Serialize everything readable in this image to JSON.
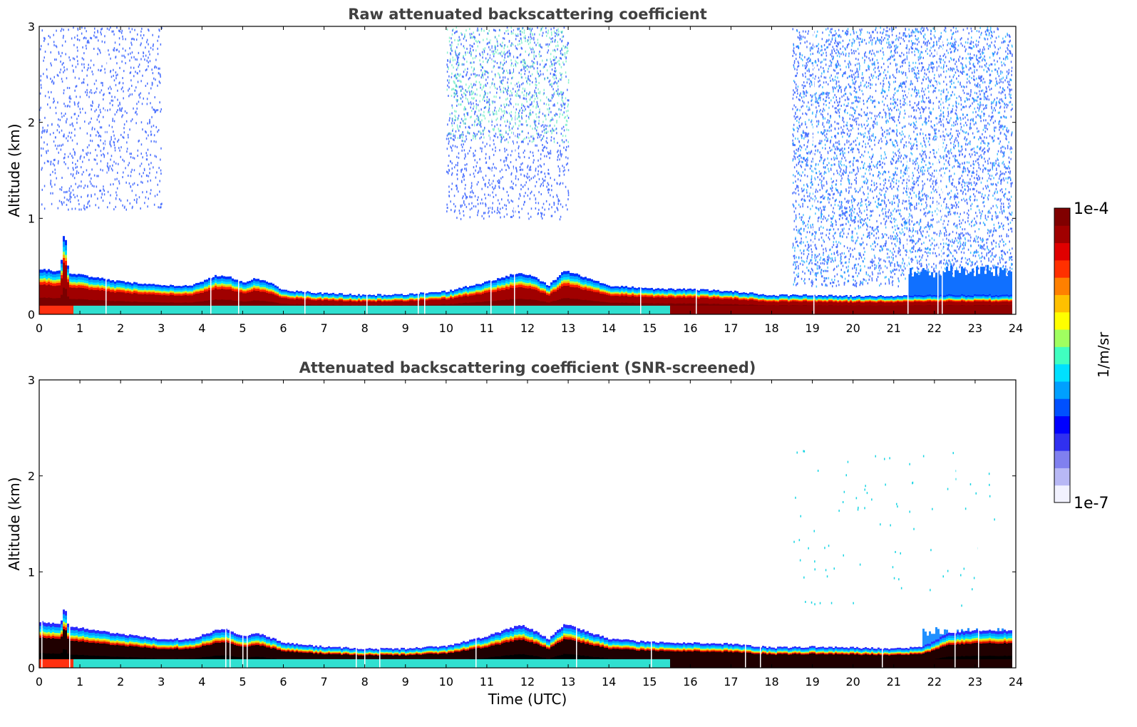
{
  "chart_data": [
    {
      "type": "heatmap",
      "title": "Raw attenuated backscattering coefficient",
      "xlabel": "",
      "ylabel": "Altitude (km)",
      "xlim": [
        0,
        24
      ],
      "ylim": [
        0,
        3
      ],
      "xticks": [
        "0",
        "1",
        "2",
        "3",
        "4",
        "5",
        "6",
        "7",
        "8",
        "9",
        "10",
        "11",
        "12",
        "13",
        "14",
        "15",
        "16",
        "17",
        "18",
        "19",
        "20",
        "21",
        "22",
        "23",
        "24"
      ],
      "yticks": [
        "0",
        "1",
        "2",
        "3"
      ],
      "screened": false,
      "layer_top_km": [
        [
          0,
          0.47
        ],
        [
          0.5,
          0.45
        ],
        [
          0.6,
          0.93
        ],
        [
          0.7,
          0.43
        ],
        [
          1,
          0.41
        ],
        [
          2,
          0.34
        ],
        [
          3,
          0.3
        ],
        [
          3.7,
          0.3
        ],
        [
          4.3,
          0.4
        ],
        [
          4.6,
          0.4
        ],
        [
          5,
          0.33
        ],
        [
          5.3,
          0.38
        ],
        [
          5.7,
          0.32
        ],
        [
          6,
          0.25
        ],
        [
          7,
          0.22
        ],
        [
          8,
          0.2
        ],
        [
          9,
          0.21
        ],
        [
          10,
          0.24
        ],
        [
          11,
          0.34
        ],
        [
          11.8,
          0.44
        ],
        [
          12.2,
          0.38
        ],
        [
          12.5,
          0.3
        ],
        [
          12.9,
          0.46
        ],
        [
          13.3,
          0.4
        ],
        [
          14,
          0.3
        ],
        [
          15,
          0.27
        ],
        [
          16,
          0.26
        ],
        [
          17,
          0.24
        ],
        [
          18,
          0.2
        ],
        [
          19,
          0.2
        ],
        [
          20,
          0.19
        ],
        [
          21,
          0.19
        ],
        [
          22,
          0.2
        ],
        [
          23,
          0.2
        ],
        [
          23.9,
          0.2
        ]
      ],
      "boundary_layer_noise_from_hour": 21.3,
      "boundary_layer_noise_top_km": 0.45,
      "cloud_regions": [
        {
          "x0": 0,
          "x1": 3,
          "y0": 1.1,
          "y1": 3,
          "density": 0.35
        },
        {
          "x0": 10,
          "x1": 13,
          "y0": 1.0,
          "y1": 3,
          "density": 0.45
        },
        {
          "x0": 18.5,
          "x1": 23.9,
          "y0": 0.3,
          "y1": 3,
          "density": 0.55
        }
      ]
    },
    {
      "type": "heatmap",
      "title": "Attenuated backscattering coefficient (SNR-screened)",
      "xlabel": "Time (UTC)",
      "ylabel": "Altitude (km)",
      "xlim": [
        0,
        24
      ],
      "ylim": [
        0,
        3
      ],
      "xticks": [
        "0",
        "1",
        "2",
        "3",
        "4",
        "5",
        "6",
        "7",
        "8",
        "9",
        "10",
        "11",
        "12",
        "13",
        "14",
        "15",
        "16",
        "17",
        "18",
        "19",
        "20",
        "21",
        "22",
        "23",
        "24"
      ],
      "yticks": [
        "0",
        "1",
        "2",
        "3"
      ],
      "screened": true,
      "layer_top_km": [
        [
          0,
          0.48
        ],
        [
          0.5,
          0.45
        ],
        [
          0.6,
          0.65
        ],
        [
          0.7,
          0.43
        ],
        [
          1,
          0.42
        ],
        [
          2,
          0.35
        ],
        [
          3,
          0.3
        ],
        [
          3.7,
          0.3
        ],
        [
          4.3,
          0.39
        ],
        [
          4.6,
          0.4
        ],
        [
          5,
          0.33
        ],
        [
          5.3,
          0.37
        ],
        [
          5.7,
          0.31
        ],
        [
          6,
          0.26
        ],
        [
          7,
          0.22
        ],
        [
          8,
          0.2
        ],
        [
          9,
          0.2
        ],
        [
          10,
          0.23
        ],
        [
          11,
          0.33
        ],
        [
          11.8,
          0.45
        ],
        [
          12.2,
          0.38
        ],
        [
          12.5,
          0.3
        ],
        [
          12.9,
          0.46
        ],
        [
          13.3,
          0.4
        ],
        [
          14,
          0.3
        ],
        [
          15,
          0.27
        ],
        [
          16,
          0.26
        ],
        [
          17,
          0.25
        ],
        [
          18,
          0.21
        ],
        [
          19,
          0.22
        ],
        [
          20,
          0.21
        ],
        [
          21,
          0.2
        ],
        [
          21.7,
          0.22
        ],
        [
          22.3,
          0.36
        ],
        [
          23,
          0.39
        ],
        [
          23.9,
          0.39
        ]
      ],
      "boundary_layer_noise_from_hour": 21.7,
      "boundary_layer_noise_top_km": 0.38,
      "cloud_regions": [
        {
          "x0": 18.5,
          "x1": 23.5,
          "y0": 0.6,
          "y1": 2.3,
          "density": 0.02
        }
      ]
    }
  ],
  "colorbar": {
    "label": "1/m/sr",
    "max_label": "1e-4",
    "min_label": "1e-7",
    "scale": "log",
    "min": 1e-07,
    "max": 0.0001,
    "colors": [
      "#f2f2ff",
      "#b8b8f5",
      "#8080ef",
      "#3030f0",
      "#0000ff",
      "#0050ff",
      "#00a0ff",
      "#00e0ff",
      "#40ffc0",
      "#a0ff60",
      "#ffff00",
      "#ffc000",
      "#ff8000",
      "#ff3000",
      "#e00000",
      "#a00000",
      "#800000"
    ]
  }
}
